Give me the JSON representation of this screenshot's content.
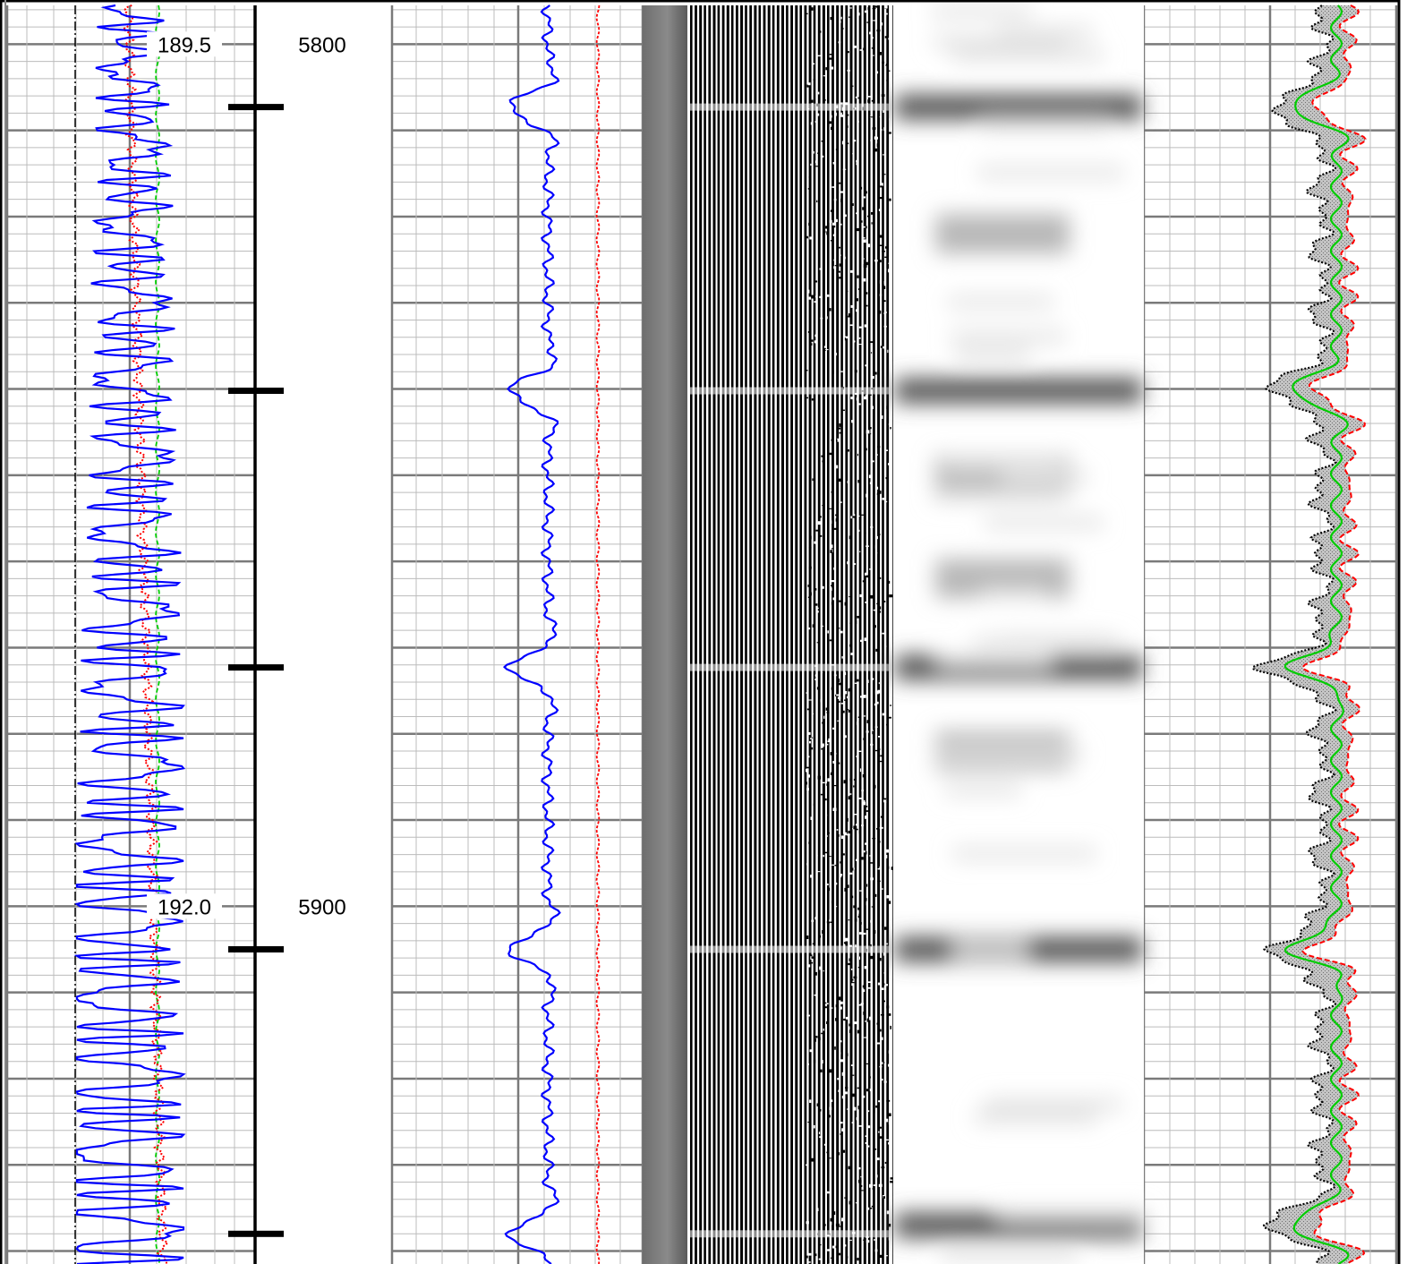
{
  "chart_data": {
    "type": "line",
    "title": "",
    "depth_labels": [
      "5800",
      "5900"
    ],
    "depth_range": [
      5795.5,
      5941.5
    ],
    "depth_ticks_major": [
      5800,
      5810,
      5820,
      5830,
      5840,
      5850,
      5860,
      5870,
      5880,
      5890,
      5900,
      5910,
      5920,
      5930,
      5940
    ],
    "annotations": [
      {
        "text": "189.5",
        "depth": 5800
      },
      {
        "text": "192.0",
        "depth": 5900
      }
    ],
    "boundary_markers_depth": [
      5807.3,
      5840.2,
      5872.3,
      5905.0,
      5938.0
    ],
    "tracks": [
      {
        "id": "track-1",
        "series": [
          {
            "color": "#0000ff",
            "style": "solid",
            "trace": "oscillating curve, amplitude increases toward the base"
          },
          {
            "color": "#ff0000",
            "style": "dotted",
            "trace": "slowly drifting curve"
          },
          {
            "color": "#00cc00",
            "style": "dashed",
            "trace": "near-constant curve"
          },
          {
            "color": "#000000",
            "style": "dash-dot",
            "trace": "constant reference line"
          }
        ]
      },
      {
        "id": "track-2",
        "series": [
          {
            "color": "#0000ff",
            "style": "solid",
            "peaks_depth": [
              5807.3,
              5840.2,
              5872.3,
              5905.0,
              5938.0
            ]
          },
          {
            "color": "#ff0000",
            "style": "dotted",
            "trace": "near-constant curve"
          }
        ]
      },
      {
        "id": "track-3",
        "type": "wiggle-image",
        "colors": [
          "#7a7a7a",
          "#000000",
          "#ffffff"
        ]
      },
      {
        "id": "track-4",
        "type": "grayscale-image",
        "dark_bands_depth": [
          5807.3,
          5822,
          5840.2,
          5850,
          5862,
          5872.3,
          5882,
          5905.0,
          5937
        ]
      },
      {
        "id": "track-5",
        "series": [
          {
            "color": "#000000",
            "style": "dotted",
            "trace": "left envelope"
          },
          {
            "color": "#00cc00",
            "style": "solid",
            "trace": "centre curve"
          },
          {
            "color": "#ff0000",
            "style": "dashed",
            "trace": "right envelope"
          }
        ],
        "fill": "#b4b4b4"
      }
    ]
  }
}
